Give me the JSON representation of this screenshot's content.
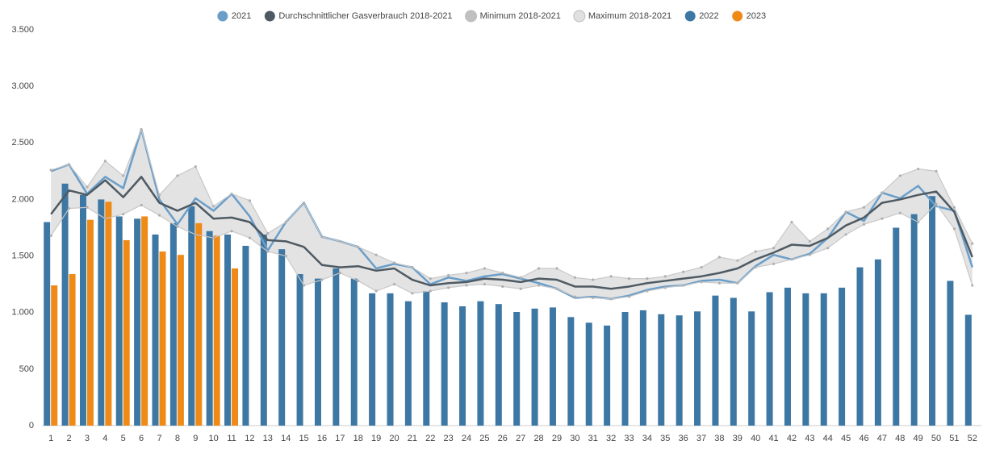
{
  "chart_data": {
    "type": "bar",
    "categories": [
      1,
      2,
      3,
      4,
      5,
      6,
      7,
      8,
      9,
      10,
      11,
      12,
      13,
      14,
      15,
      16,
      17,
      18,
      19,
      20,
      21,
      22,
      23,
      24,
      25,
      26,
      27,
      28,
      29,
      30,
      31,
      32,
      33,
      34,
      35,
      36,
      37,
      38,
      39,
      40,
      41,
      42,
      43,
      44,
      45,
      46,
      47,
      48,
      49,
      50,
      51,
      52
    ],
    "ylim": [
      0,
      3500
    ],
    "yticks": [
      0,
      500,
      {
        "value": 1000,
        "label": "1.000"
      },
      {
        "value": 1500,
        "label": "1.500"
      },
      {
        "value": 2000,
        "label": "2.000"
      },
      {
        "value": 2500,
        "label": "2.500"
      },
      {
        "value": 3000,
        "label": "3.000"
      },
      {
        "value": 3500,
        "label": "3.500"
      }
    ],
    "grid": false,
    "legend": "top",
    "series": [
      {
        "name": "2021",
        "type": "line",
        "color": "#6a9ec9",
        "values": [
          2250,
          2310,
          2050,
          2200,
          2100,
          2620,
          2000,
          1780,
          2010,
          1900,
          2050,
          1850,
          1550,
          1800,
          1970,
          1670,
          1630,
          1580,
          1390,
          1430,
          1400,
          1250,
          1310,
          1280,
          1320,
          1340,
          1300,
          1260,
          1210,
          1130,
          1140,
          1120,
          1150,
          1200,
          1230,
          1240,
          1280,
          1290,
          1260,
          1410,
          1510,
          1470,
          1520,
          1660,
          1890,
          1810,
          2060,
          2010,
          2120,
          1940,
          1900,
          1400
        ]
      },
      {
        "name": "Durchschnittlicher Gasverbrauch 2018-2021",
        "type": "line",
        "color": "#4e5a63",
        "values": [
          1870,
          2080,
          2040,
          2170,
          2020,
          2200,
          1970,
          1900,
          1970,
          1830,
          1840,
          1800,
          1640,
          1630,
          1580,
          1420,
          1400,
          1410,
          1370,
          1390,
          1290,
          1240,
          1260,
          1270,
          1300,
          1290,
          1270,
          1300,
          1290,
          1230,
          1230,
          1210,
          1230,
          1260,
          1280,
          1300,
          1320,
          1350,
          1390,
          1470,
          1530,
          1600,
          1590,
          1660,
          1770,
          1840,
          1970,
          2000,
          2040,
          2070,
          1890,
          1490
        ]
      },
      {
        "name": "Minimum 2018-2021",
        "type": "band-low",
        "color": "#c0c0c0",
        "values": [
          1680,
          1920,
          1930,
          1830,
          1870,
          1950,
          1860,
          1760,
          1690,
          1660,
          1720,
          1660,
          1540,
          1500,
          1240,
          1290,
          1350,
          1280,
          1190,
          1250,
          1170,
          1190,
          1220,
          1240,
          1250,
          1230,
          1210,
          1240,
          1210,
          1140,
          1130,
          1120,
          1140,
          1190,
          1220,
          1240,
          1270,
          1260,
          1260,
          1400,
          1430,
          1470,
          1510,
          1570,
          1690,
          1780,
          1830,
          1880,
          1800,
          1960,
          1740,
          1240
        ]
      },
      {
        "name": "Maximum 2018-2021",
        "type": "band-high",
        "color": "#e0e0e0",
        "values": [
          2260,
          2310,
          2110,
          2340,
          2210,
          2620,
          2040,
          2210,
          2290,
          1940,
          2050,
          1990,
          1700,
          1800,
          1970,
          1670,
          1630,
          1580,
          1510,
          1440,
          1400,
          1300,
          1330,
          1350,
          1390,
          1350,
          1310,
          1390,
          1390,
          1310,
          1290,
          1320,
          1300,
          1300,
          1320,
          1360,
          1400,
          1490,
          1460,
          1540,
          1570,
          1800,
          1630,
          1740,
          1890,
          1930,
          2060,
          2210,
          2270,
          2250,
          1930,
          1610
        ]
      },
      {
        "name": "2022",
        "type": "bar",
        "color": "#3d77a3",
        "values": [
          1800,
          2140,
          2040,
          2000,
          1850,
          1830,
          1690,
          1790,
          1940,
          1720,
          1690,
          1590,
          1690,
          1560,
          1340,
          1300,
          1390,
          1300,
          1170,
          1170,
          1100,
          1190,
          1090,
          1055,
          1100,
          1075,
          1005,
          1035,
          1045,
          960,
          910,
          885,
          1005,
          1020,
          985,
          975,
          1010,
          1150,
          1130,
          1010,
          1180,
          1220,
          1170,
          1170,
          1220,
          1400,
          1470,
          1750,
          1870,
          2030,
          1280,
          980
        ]
      },
      {
        "name": "2023",
        "type": "bar",
        "color": "#ef8a17",
        "values": [
          1240,
          1340,
          1820,
          1980,
          1640,
          1850,
          1540,
          1510,
          1790,
          1680,
          1390,
          null,
          null,
          null,
          null,
          null,
          null,
          null,
          null,
          null,
          null,
          null,
          null,
          null,
          null,
          null,
          null,
          null,
          null,
          null,
          null,
          null,
          null,
          null,
          null,
          null,
          null,
          null,
          null,
          null,
          null,
          null,
          null,
          null,
          null,
          null,
          null,
          null,
          null,
          null,
          null,
          null
        ]
      }
    ]
  }
}
